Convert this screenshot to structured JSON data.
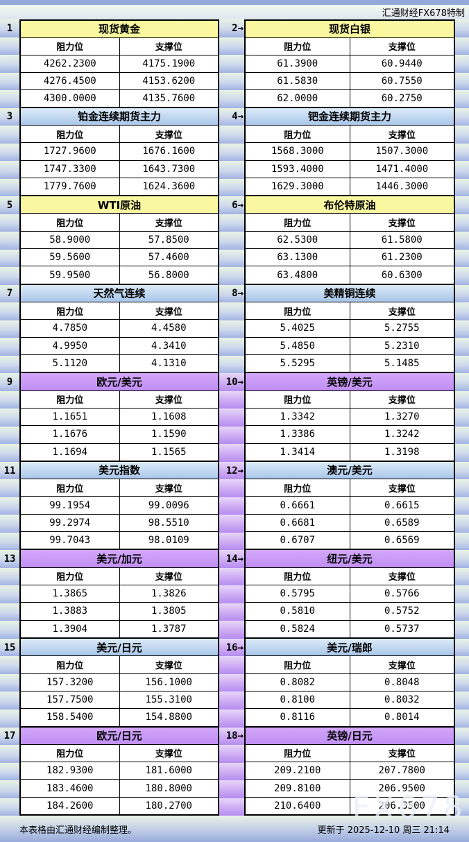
{
  "header": {
    "note": "汇通财经FX678特制"
  },
  "columns": {
    "resistance": "阻力位",
    "support": "支撑位"
  },
  "panels": [
    {
      "num": "1",
      "title": "现货黄金",
      "style": "yellow",
      "rows": [
        [
          "4262.2300",
          "4175.1900"
        ],
        [
          "4276.4500",
          "4153.6200"
        ],
        [
          "4300.0000",
          "4135.7600"
        ]
      ]
    },
    {
      "num": "2→",
      "title": "现货白银",
      "style": "yellow",
      "rows": [
        [
          "61.3900",
          "60.9440"
        ],
        [
          "61.5830",
          "60.7550"
        ],
        [
          "62.0000",
          "60.2750"
        ]
      ]
    },
    {
      "num": "3",
      "title": "铂金连续期货主力",
      "style": "blue",
      "rows": [
        [
          "1727.9600",
          "1676.1600"
        ],
        [
          "1747.3300",
          "1643.7300"
        ],
        [
          "1779.7600",
          "1624.3600"
        ]
      ]
    },
    {
      "num": "4→",
      "title": "钯金连续期货主力",
      "style": "blue",
      "rows": [
        [
          "1568.3000",
          "1507.3000"
        ],
        [
          "1593.4000",
          "1471.4000"
        ],
        [
          "1629.3000",
          "1446.3000"
        ]
      ]
    },
    {
      "num": "5",
      "title": "WTI原油",
      "style": "yellow",
      "rows": [
        [
          "58.9000",
          "57.8500"
        ],
        [
          "59.5600",
          "57.4600"
        ],
        [
          "59.9500",
          "56.8000"
        ]
      ]
    },
    {
      "num": "6→",
      "title": "布伦特原油",
      "style": "yellow",
      "rows": [
        [
          "62.5300",
          "61.5800"
        ],
        [
          "63.1300",
          "61.2300"
        ],
        [
          "63.4800",
          "60.6300"
        ]
      ]
    },
    {
      "num": "7",
      "title": "天然气连续",
      "style": "blue",
      "rows": [
        [
          "4.7850",
          "4.4580"
        ],
        [
          "4.9950",
          "4.3410"
        ],
        [
          "5.1120",
          "4.1310"
        ]
      ]
    },
    {
      "num": "8→",
      "title": "美精铜连续",
      "style": "blue",
      "rows": [
        [
          "5.4025",
          "5.2755"
        ],
        [
          "5.4850",
          "5.2310"
        ],
        [
          "5.5295",
          "5.1485"
        ]
      ]
    },
    {
      "num": "9",
      "title": "欧元/美元",
      "style": "purple",
      "rows": [
        [
          "1.1651",
          "1.1608"
        ],
        [
          "1.1676",
          "1.1590"
        ],
        [
          "1.1694",
          "1.1565"
        ]
      ]
    },
    {
      "num": "10→",
      "title": "英镑/美元",
      "style": "purple",
      "rows": [
        [
          "1.3342",
          "1.3270"
        ],
        [
          "1.3386",
          "1.3242"
        ],
        [
          "1.3414",
          "1.3198"
        ]
      ]
    },
    {
      "num": "11",
      "title": "美元指数",
      "style": "blue",
      "rows": [
        [
          "99.1954",
          "99.0096"
        ],
        [
          "99.2974",
          "98.5510"
        ],
        [
          "99.7043",
          "98.0109"
        ]
      ]
    },
    {
      "num": "12→",
      "title": "澳元/美元",
      "style": "blue",
      "rows": [
        [
          "0.6661",
          "0.6615"
        ],
        [
          "0.6681",
          "0.6589"
        ],
        [
          "0.6707",
          "0.6569"
        ]
      ]
    },
    {
      "num": "13",
      "title": "美元/加元",
      "style": "purple",
      "rows": [
        [
          "1.3865",
          "1.3826"
        ],
        [
          "1.3883",
          "1.3805"
        ],
        [
          "1.3904",
          "1.3787"
        ]
      ]
    },
    {
      "num": "14→",
      "title": "纽元/美元",
      "style": "purple",
      "rows": [
        [
          "0.5795",
          "0.5766"
        ],
        [
          "0.5810",
          "0.5752"
        ],
        [
          "0.5824",
          "0.5737"
        ]
      ]
    },
    {
      "num": "15",
      "title": "美元/日元",
      "style": "blue",
      "rows": [
        [
          "157.3200",
          "156.1000"
        ],
        [
          "157.7500",
          "155.3100"
        ],
        [
          "158.5400",
          "154.8800"
        ]
      ]
    },
    {
      "num": "16→",
      "title": "美元/瑞郎",
      "style": "blue",
      "rows": [
        [
          "0.8082",
          "0.8048"
        ],
        [
          "0.8100",
          "0.8032"
        ],
        [
          "0.8116",
          "0.8014"
        ]
      ]
    },
    {
      "num": "17",
      "title": "欧元/日元",
      "style": "purple",
      "rows": [
        [
          "182.9300",
          "181.6000"
        ],
        [
          "183.4600",
          "180.8000"
        ],
        [
          "184.2600",
          "180.2700"
        ]
      ]
    },
    {
      "num": "18→",
      "title": "英镑/日元",
      "style": "purple",
      "rows": [
        [
          "209.2100",
          "207.7800"
        ],
        [
          "209.8100",
          "206.9500"
        ],
        [
          "210.6400",
          "206.3500"
        ]
      ]
    }
  ],
  "footer": {
    "left": "本表格由汇通财经编制整理。",
    "right": "更新于 2025-12-10 周三 21:14"
  },
  "watermark": "FX678",
  "colors": {
    "title_yellow": "#faf7a1",
    "title_blue_top": "#dcebf8",
    "title_blue_bottom": "#a9c6e9",
    "title_purple": "#c897f6",
    "gutter_green_top": "#e9f3e5",
    "gutter_green_bottom": "#a2b3e3",
    "gutter_purple_top": "#e7d7f8",
    "gutter_purple_bottom": "#b68cf0",
    "top_strip": "#93a9d9",
    "border": "#000000"
  }
}
